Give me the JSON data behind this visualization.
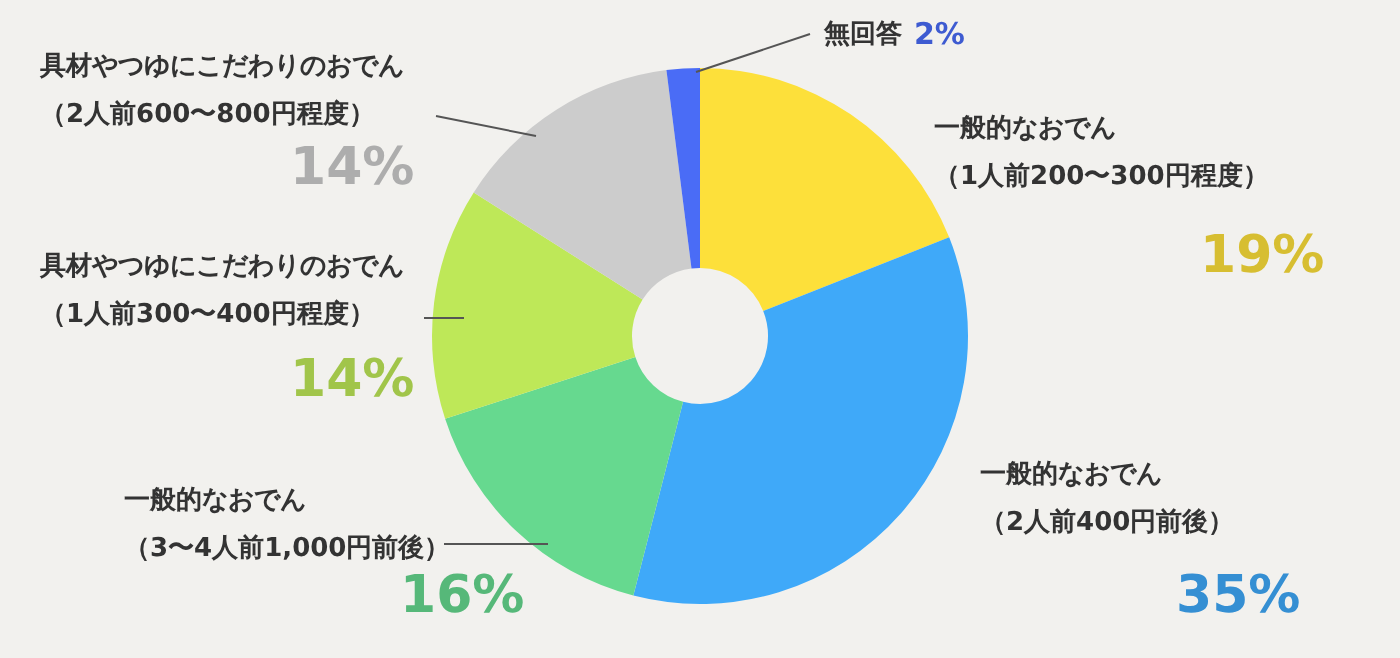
{
  "chart_data": {
    "type": "donut",
    "categories": [
      "一般的なおでん（1人前200〜300円程度）",
      "一般的なおでん（2人前400円前後）",
      "一般的なおでん（3〜4人前1,000円前後）",
      "具材やつゆにこだわりのおでん（1人前300〜400円程度）",
      "具材やつゆにこだわりのおでん（2人前600〜800円程度）",
      "無回答"
    ],
    "values": [
      19,
      35,
      16,
      14,
      14,
      2
    ],
    "value_labels": [
      "19%",
      "35%",
      "16%",
      "14%",
      "14%",
      "2%"
    ],
    "colors": [
      "#fde03a",
      "#3fa9f9",
      "#66d98f",
      "#bee858",
      "#cccccc",
      "#4a6cf6"
    ]
  }
}
